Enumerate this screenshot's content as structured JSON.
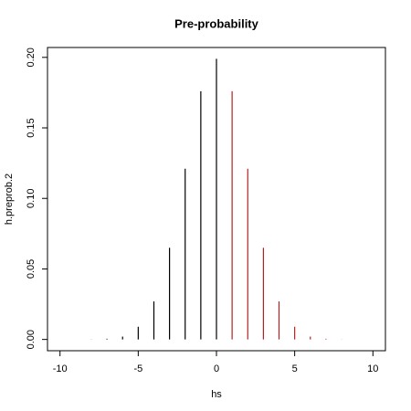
{
  "chart_data": {
    "type": "spike",
    "title": "Pre-probability",
    "x_label": "hs",
    "y_label": "h.preprob.2",
    "series": [
      {
        "color": "#000000",
        "x": [
          -10,
          -9,
          -8,
          -7,
          -6,
          -5,
          -4,
          -3,
          -2,
          -1,
          0
        ],
        "values": [
          0,
          0,
          0.0001,
          0.0005,
          0.002,
          0.009,
          0.027,
          0.065,
          0.121,
          0.176,
          0.199
        ]
      },
      {
        "color": "#b22222",
        "x": [
          1,
          2,
          3,
          4,
          5,
          6,
          7,
          8,
          9,
          10
        ],
        "values": [
          0.176,
          0.121,
          0.065,
          0.027,
          0.009,
          0.002,
          0.0005,
          0.0001,
          0,
          0
        ]
      }
    ],
    "xlim": [
      -10.8,
      10.8
    ],
    "ylim": [
      -0.008,
      0.207
    ],
    "xticks": [
      -10,
      -5,
      0,
      5,
      10
    ],
    "yticks": [
      {
        "value": 0,
        "label": "0.00"
      },
      {
        "value": 0.05,
        "label": "0.05"
      },
      {
        "value": 0.1,
        "label": "0.10"
      },
      {
        "value": 0.15,
        "label": "0.15"
      },
      {
        "value": 0.2,
        "label": "0.20"
      }
    ]
  }
}
